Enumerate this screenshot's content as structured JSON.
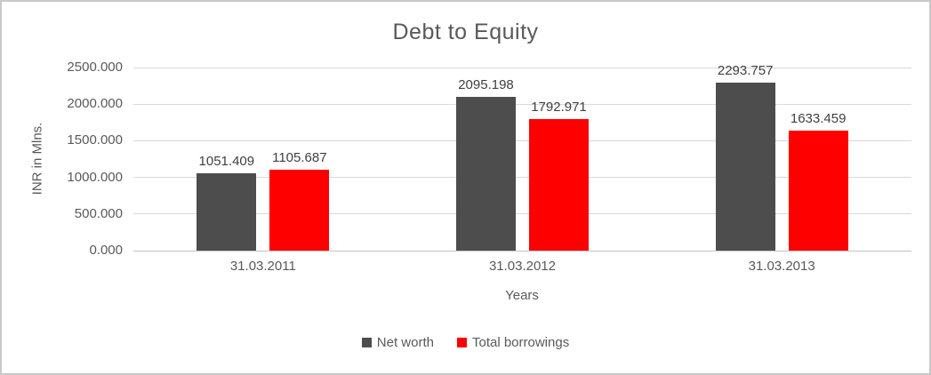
{
  "chart_data": {
    "type": "bar",
    "title": "Debt to Equity",
    "xlabel": "Years",
    "ylabel": "INR in Mlns.",
    "categories": [
      "31.03.2011",
      "31.03.2012",
      "31.03.2013"
    ],
    "series": [
      {
        "name": "Net worth",
        "color": "#4d4d4d",
        "values": [
          1051.409,
          2095.198,
          2293.757
        ],
        "labels": [
          "1051.409",
          "2095.198",
          "2293.757"
        ]
      },
      {
        "name": "Total borrowings",
        "color": "#ff0000",
        "values": [
          1105.687,
          1792.971,
          1633.459
        ],
        "labels": [
          "1105.687",
          "1792.971",
          "1633.459"
        ]
      }
    ],
    "ylim": [
      0,
      2500
    ],
    "y_ticks": [
      "0.000",
      "500.000",
      "1000.000",
      "1500.000",
      "2000.000",
      "2500.000"
    ],
    "grid": true,
    "legend_position": "bottom"
  },
  "colors": {
    "text": "#595959",
    "data_label": "#3f3f3f",
    "gridline": "#d9d9d9",
    "axis_line": "#c3c3c3",
    "frame_border": "#c9c9c9",
    "background": "#ffffff"
  }
}
